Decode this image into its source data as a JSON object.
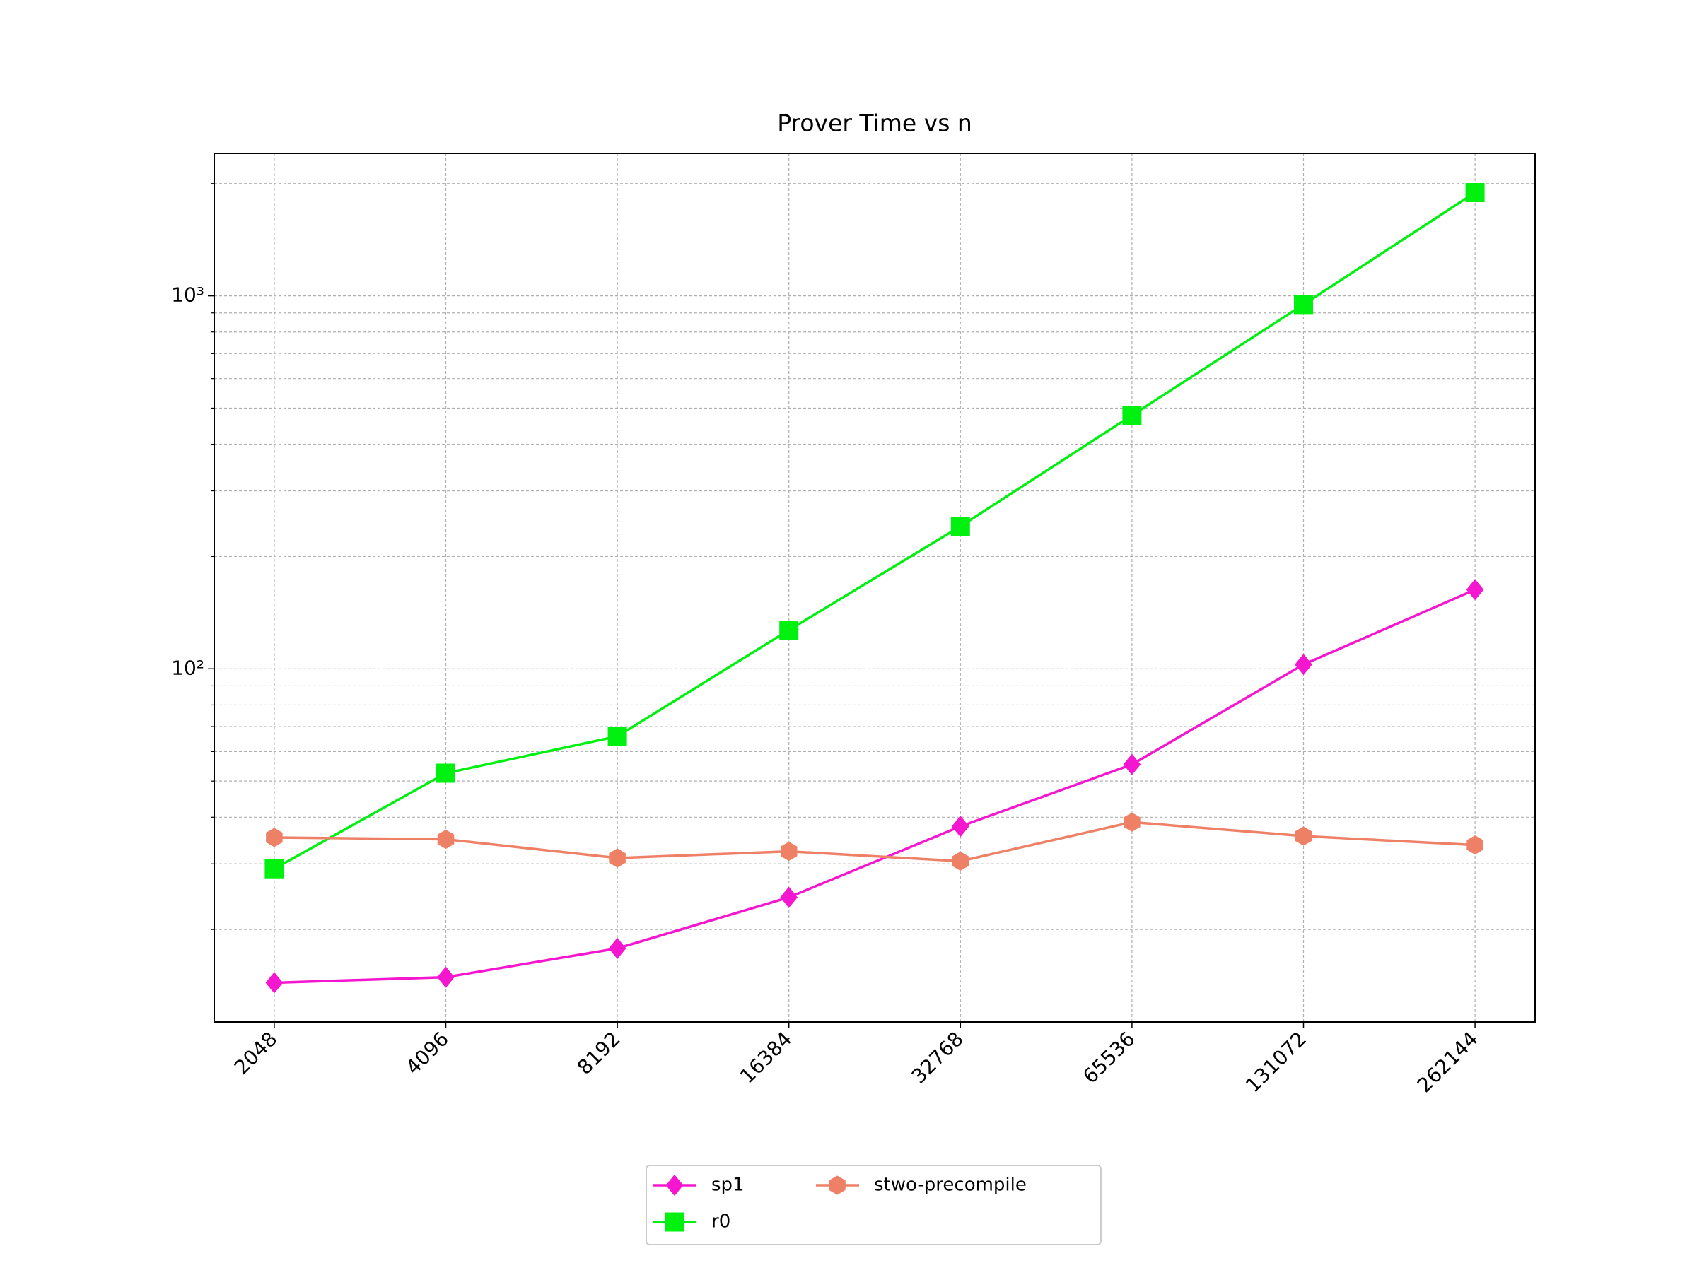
{
  "chart_data": {
    "type": "line",
    "title": "Prover Time vs n",
    "categories": [
      "2048",
      "4096",
      "8192",
      "16384",
      "32768",
      "65536",
      "131072",
      "262144"
    ],
    "series": [
      {
        "name": "sp1",
        "color": "#f516cf",
        "marker": "diamond",
        "values": [
          14.4,
          14.9,
          17.8,
          24.4,
          37.8,
          55.4,
          102.7,
          163
        ]
      },
      {
        "name": "r0",
        "color": "#00f010",
        "marker": "square",
        "values": [
          29.1,
          52.5,
          65.9,
          127,
          241,
          478,
          948,
          1892
        ]
      },
      {
        "name": "stwo-precompile",
        "color": "#ee8066",
        "marker": "hexagon",
        "values": [
          35.3,
          34.9,
          31.1,
          32.4,
          30.5,
          38.8,
          35.6,
          33.7
        ]
      }
    ],
    "log_scale": "y",
    "ylim": [
      11.3,
      2410
    ],
    "yticks": [
      {
        "value": 100,
        "label": "10²"
      },
      {
        "value": 1000,
        "label": "10³"
      }
    ],
    "minor_yticks": [
      20,
      30,
      40,
      50,
      60,
      70,
      80,
      90,
      200,
      300,
      400,
      500,
      600,
      700,
      800,
      900,
      2000
    ],
    "grid": true,
    "legend": "lower center"
  }
}
